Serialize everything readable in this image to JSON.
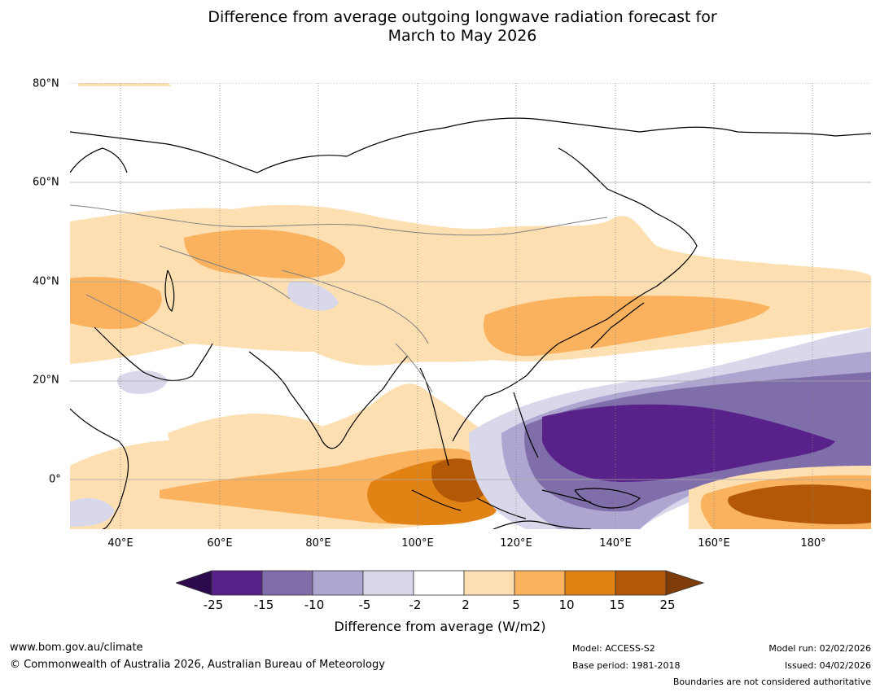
{
  "title": {
    "line1": "Difference from average outgoing longwave radiation forecast for",
    "line2": "March to May 2026"
  },
  "map": {
    "lat_labels": [
      "80°N",
      "60°N",
      "40°N",
      "20°N",
      "0°"
    ],
    "lon_labels": [
      "40°E",
      "60°E",
      "80°E",
      "100°E",
      "120°E",
      "140°E",
      "160°E",
      "180°"
    ],
    "extent": {
      "lon_min": 30,
      "lon_max": 191,
      "lat_min": -10,
      "lat_max": 80
    }
  },
  "colorbar": {
    "ticks": [
      "-25",
      "-15",
      "-10",
      "-5",
      "-2",
      "2",
      "5",
      "10",
      "15",
      "25"
    ],
    "colors": {
      "below": "#2d0a4e",
      "bins": [
        "#58228a",
        "#7f6ea9",
        "#aea6d0",
        "#d8d8ea",
        "#ffffff",
        "#fedfb1",
        "#fbb25e",
        "#e08214",
        "#b35806"
      ],
      "above": "#7f3b08"
    },
    "title": "Difference from average (W/m2)"
  },
  "footer": {
    "website": "www.bom.gov.au/climate",
    "copyright": "© Commonwealth of Australia 2026, Australian Bureau of Meteorology",
    "model": "Model: ACCESS-S2",
    "base_period": "Base period: 1981-2018",
    "model_run": "Model run: 02/02/2026",
    "issued": "Issued: 04/02/2026",
    "boundaries": "Boundaries are not considered authoritative"
  }
}
